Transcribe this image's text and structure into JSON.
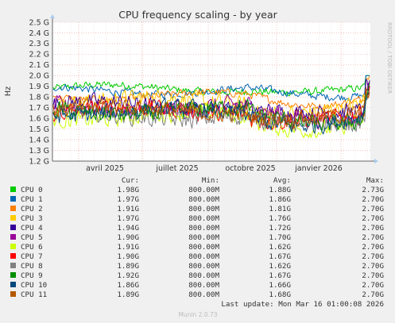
{
  "chart_data": {
    "type": "line",
    "title": "CPU frequency scaling - by year",
    "ylabel": "Hz",
    "side_label": "RRDTOOL / TOBI OETIKER",
    "yticks": [
      "1.2 G",
      "1.3 G",
      "1.4 G",
      "1.5 G",
      "1.6 G",
      "1.7 G",
      "1.8 G",
      "1.9 G",
      "2.0 G",
      "2.1 G",
      "2.2 G",
      "2.3 G",
      "2.4 G",
      "2.5 G"
    ],
    "ylim": [
      1.2,
      2.5
    ],
    "xticks": [
      "avril 2025",
      "juillet 2025",
      "octobre 2025",
      "janvier 2026"
    ],
    "grid": true,
    "legend_position": "bottom",
    "columns": [
      "Cur:",
      "Min:",
      "Avg:",
      "Max:"
    ],
    "series": [
      {
        "name": "CPU 0",
        "color": "#00cc00",
        "cur": "1.98G",
        "min": "800.00M",
        "avg": "1.88G",
        "max": "2.73G",
        "level": 1.88
      },
      {
        "name": "CPU 1",
        "color": "#0066b3",
        "cur": "1.97G",
        "min": "800.00M",
        "avg": "1.86G",
        "max": "2.70G",
        "level": 1.86
      },
      {
        "name": "CPU 2",
        "color": "#ff8000",
        "cur": "1.91G",
        "min": "800.00M",
        "avg": "1.81G",
        "max": "2.70G",
        "level": 1.81
      },
      {
        "name": "CPU 3",
        "color": "#ffcc00",
        "cur": "1.97G",
        "min": "800.00M",
        "avg": "1.76G",
        "max": "2.70G",
        "level": 1.76
      },
      {
        "name": "CPU 4",
        "color": "#330099",
        "cur": "1.94G",
        "min": "800.00M",
        "avg": "1.72G",
        "max": "2.70G",
        "level": 1.72
      },
      {
        "name": "CPU 5",
        "color": "#990099",
        "cur": "1.90G",
        "min": "800.00M",
        "avg": "1.70G",
        "max": "2.70G",
        "level": 1.7
      },
      {
        "name": "CPU 6",
        "color": "#ccff00",
        "cur": "1.91G",
        "min": "800.00M",
        "avg": "1.62G",
        "max": "2.70G",
        "level": 1.62
      },
      {
        "name": "CPU 7",
        "color": "#ff0000",
        "cur": "1.90G",
        "min": "800.00M",
        "avg": "1.67G",
        "max": "2.70G",
        "level": 1.67
      },
      {
        "name": "CPU 8",
        "color": "#808080",
        "cur": "1.89G",
        "min": "800.00M",
        "avg": "1.62G",
        "max": "2.70G",
        "level": 1.62
      },
      {
        "name": "CPU 9",
        "color": "#008f00",
        "cur": "1.92G",
        "min": "800.00M",
        "avg": "1.67G",
        "max": "2.70G",
        "level": 1.67
      },
      {
        "name": "CPU 10",
        "color": "#00487d",
        "cur": "1.86G",
        "min": "800.00M",
        "avg": "1.66G",
        "max": "2.70G",
        "level": 1.66
      },
      {
        "name": "CPU 11",
        "color": "#b35a00",
        "cur": "1.89G",
        "min": "800.00M",
        "avg": "1.68G",
        "max": "2.70G",
        "level": 1.68
      }
    ],
    "last_update": "Last update: Mon Mar 16 01:00:08 2026",
    "footer": "Munin 2.0.73"
  }
}
